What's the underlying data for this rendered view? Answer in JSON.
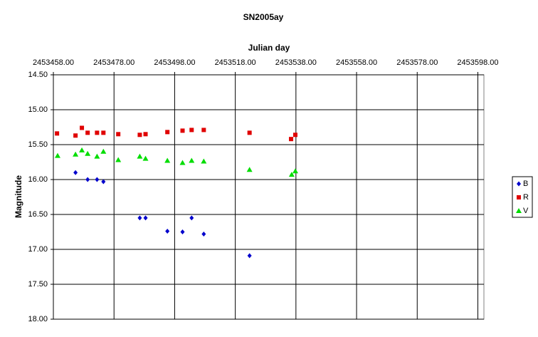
{
  "chart_data": {
    "type": "scatter",
    "title": "SN2005ay",
    "x_label": "Julian day",
    "y_label": "Magnitude",
    "xlim": [
      2453458,
      2453600
    ],
    "ylim": [
      14.5,
      18
    ],
    "y_reversed": true,
    "x_axis_position": "top",
    "grid": true,
    "legend": "right",
    "xticks": [
      {
        "value": 2453458,
        "label": "2453458.00"
      },
      {
        "value": 2453478,
        "label": "2453478.00"
      },
      {
        "value": 2453498,
        "label": "2453498.00"
      },
      {
        "value": 2453518,
        "label": "2453518.00"
      },
      {
        "value": 2453538,
        "label": "2453538.00"
      },
      {
        "value": 2453558,
        "label": "2453558.00"
      },
      {
        "value": 2453578,
        "label": "2453578.00"
      },
      {
        "value": 2453598,
        "label": "2453598.00"
      }
    ],
    "yticks": [
      {
        "value": 14.5,
        "label": "14.50"
      },
      {
        "value": 15,
        "label": "15.00"
      },
      {
        "value": 15.5,
        "label": "15.50"
      },
      {
        "value": 16,
        "label": "16.00"
      },
      {
        "value": 16.5,
        "label": "16.50"
      },
      {
        "value": 17,
        "label": "17.00"
      },
      {
        "value": 17.5,
        "label": "17.50"
      },
      {
        "value": 18,
        "label": "18.00"
      }
    ],
    "series": [
      {
        "name": "B",
        "color": "#0000cc",
        "marker": "diamond",
        "x": [
          2453465.3,
          2453469.3,
          2453472.4,
          2453474.5,
          2453486.5,
          2453488.4,
          2453495.6,
          2453500.6,
          2453503.6,
          2453507.6,
          2453522.7
        ],
        "values": [
          15.9,
          16.0,
          16.0,
          16.03,
          16.55,
          16.55,
          16.74,
          16.75,
          16.55,
          16.78,
          17.09
        ]
      },
      {
        "name": "R",
        "color": "#e00000",
        "marker": "square",
        "x": [
          2453459.2,
          2453465.3,
          2453467.4,
          2453469.3,
          2453472.4,
          2453474.5,
          2453479.4,
          2453486.5,
          2453488.4,
          2453495.6,
          2453500.6,
          2453503.6,
          2453507.6,
          2453522.7,
          2453536.4,
          2453537.8
        ],
        "values": [
          15.34,
          15.37,
          15.26,
          15.33,
          15.33,
          15.33,
          15.35,
          15.36,
          15.35,
          15.32,
          15.3,
          15.29,
          15.29,
          15.33,
          15.42,
          15.36
        ]
      },
      {
        "name": "V",
        "color": "#00dd00",
        "marker": "triangle",
        "x": [
          2453459.4,
          2453465.3,
          2453467.4,
          2453469.3,
          2453472.4,
          2453474.5,
          2453479.4,
          2453486.5,
          2453488.4,
          2453495.6,
          2453500.6,
          2453503.6,
          2453507.6,
          2453522.7,
          2453536.6,
          2453537.8
        ],
        "values": [
          15.66,
          15.64,
          15.58,
          15.63,
          15.67,
          15.6,
          15.72,
          15.67,
          15.7,
          15.73,
          15.76,
          15.73,
          15.74,
          15.86,
          15.93,
          15.88
        ]
      }
    ]
  }
}
